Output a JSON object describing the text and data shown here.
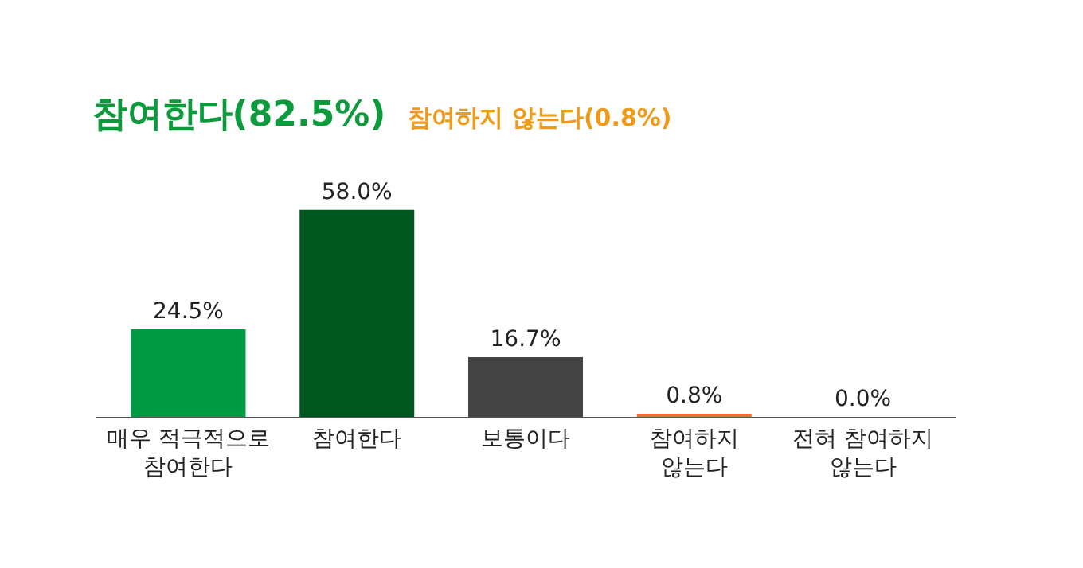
{
  "chart_data": {
    "type": "bar",
    "title": "참여한다(82.5%)",
    "subtitle": "참여하지 않는다(0.8%)",
    "categories": [
      "매우 적극적으로 참여한다",
      "참여한다",
      "보통이다",
      "참여하지 않는다",
      "전혀 참여하지 않는다"
    ],
    "values": [
      24.5,
      58.0,
      16.7,
      0.8,
      0.0
    ],
    "value_labels": [
      "24.5%",
      "58.0%",
      "16.7%",
      "0.8%",
      "0.0%"
    ],
    "colors": [
      "#009a44",
      "#00561f",
      "#444444",
      "#f26a3a",
      "#999999"
    ],
    "legend": false
  }
}
